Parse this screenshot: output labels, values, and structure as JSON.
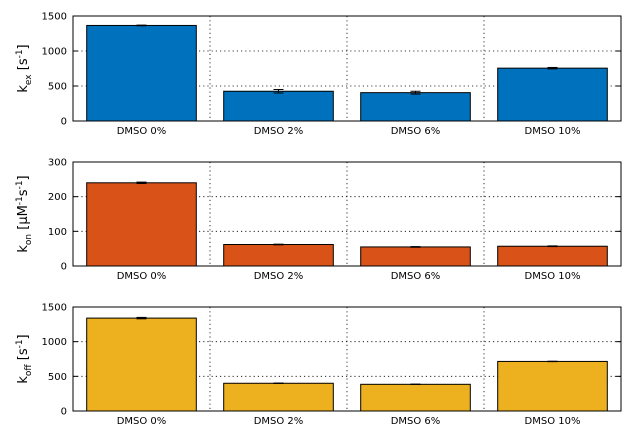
{
  "chart_data": [
    {
      "type": "bar",
      "categories": [
        "DMSO 0%",
        "DMSO 2%",
        "DMSO 6%",
        "DMSO 10%"
      ],
      "values": [
        1365,
        425,
        405,
        755
      ],
      "errors": [
        5,
        25,
        20,
        10
      ],
      "ylim": [
        0,
        1500
      ],
      "yticks": [
        0,
        500,
        1000,
        1500
      ],
      "ylabel_parts": {
        "base": "k",
        "sub": "ex",
        "pre": " [s",
        "sup": "-1",
        "post": "]"
      },
      "color": "#0072BD",
      "grid": true
    },
    {
      "type": "bar",
      "categories": [
        "DMSO 0%",
        "DMSO 2%",
        "DMSO 6%",
        "DMSO 10%"
      ],
      "values": [
        240,
        62,
        55,
        57
      ],
      "errors": [
        2,
        1,
        1,
        1
      ],
      "ylim": [
        0,
        300
      ],
      "yticks": [
        0,
        100,
        200,
        300
      ],
      "ylabel_parts": {
        "base": "k",
        "sub": "on",
        "pre": " [μM",
        "sup": "-1",
        "post": "s",
        "sup2": "-1",
        "post2": "]"
      },
      "color": "#D95319",
      "grid": true
    },
    {
      "type": "bar",
      "categories": [
        "DMSO 0%",
        "DMSO 2%",
        "DMSO 6%",
        "DMSO 10%"
      ],
      "values": [
        1340,
        400,
        385,
        715
      ],
      "errors": [
        10,
        3,
        3,
        3
      ],
      "ylim": [
        0,
        1500
      ],
      "yticks": [
        0,
        500,
        1000,
        1500
      ],
      "ylabel_parts": {
        "base": "k",
        "sub": "off",
        "pre": " [s",
        "sup": "-1",
        "post": "]"
      },
      "color": "#EDB120",
      "grid": true
    }
  ]
}
